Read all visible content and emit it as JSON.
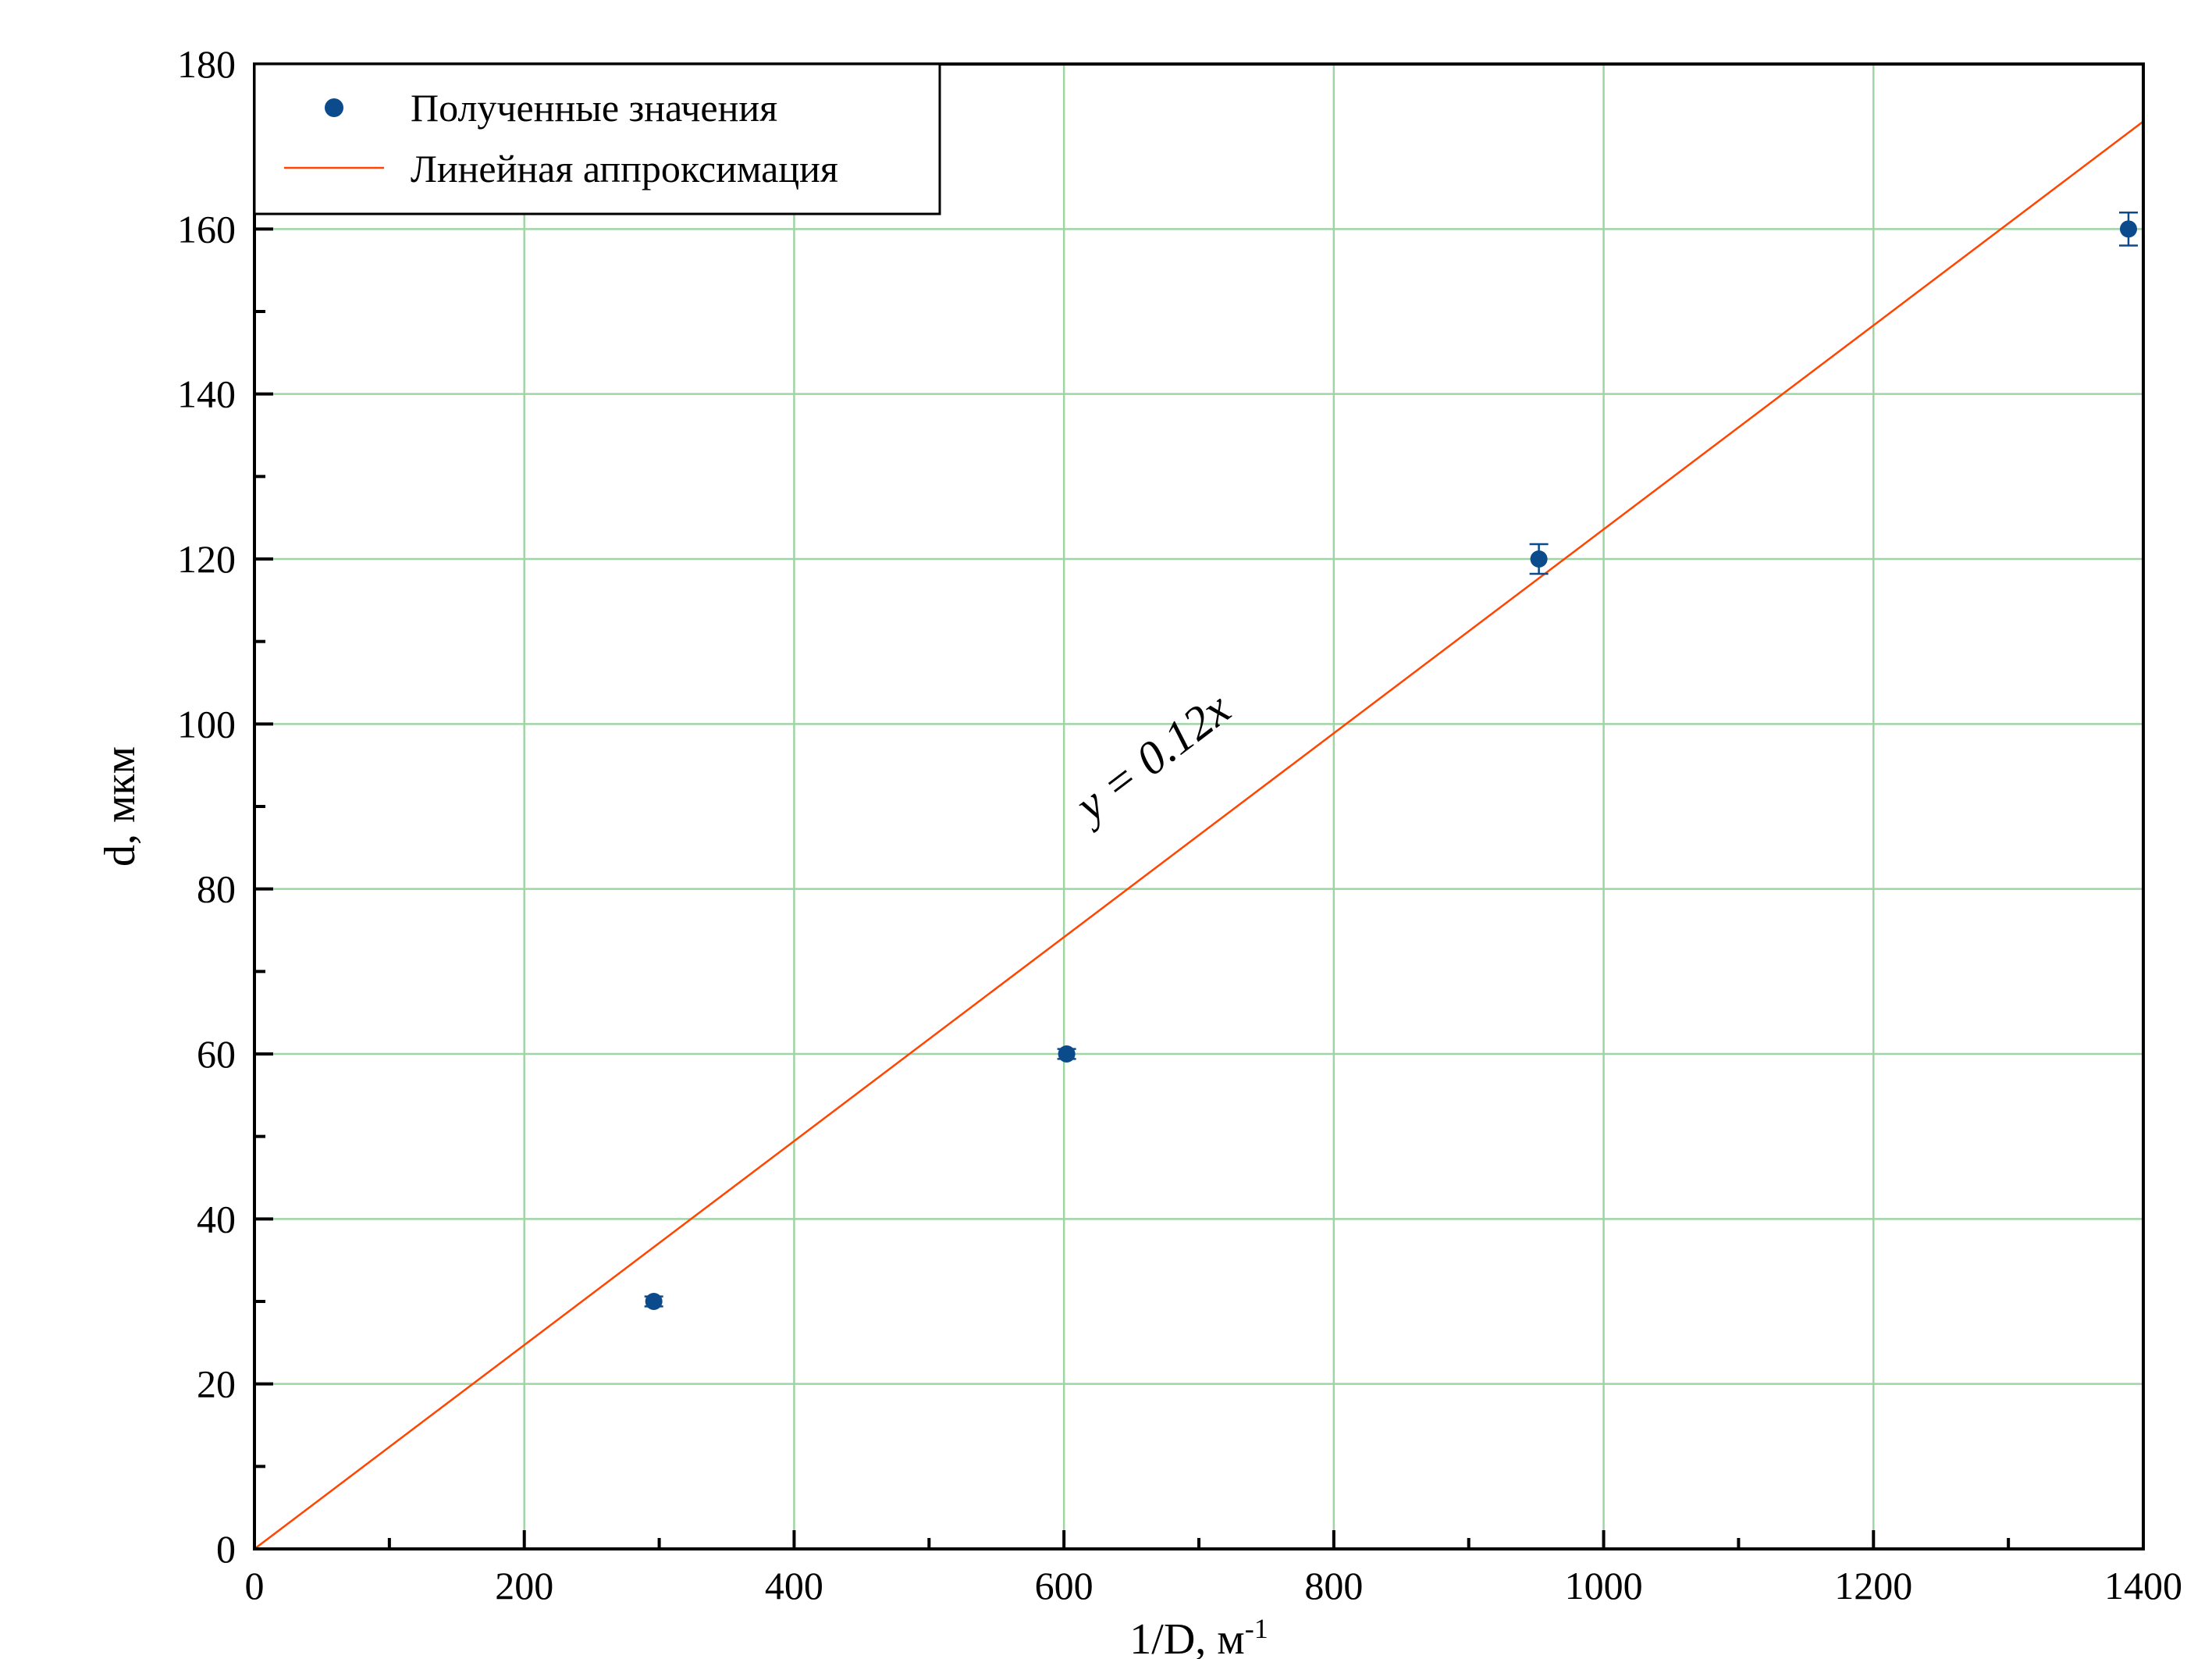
{
  "chart_data": {
    "type": "scatter",
    "xlabel": "1/D, м",
    "xlabel_sup": "-1",
    "ylabel": "d, мкм",
    "xlim": [
      0,
      1400
    ],
    "ylim": [
      0,
      180
    ],
    "x_major_ticks": [
      0,
      200,
      400,
      600,
      800,
      1000,
      1200,
      1400
    ],
    "x_minor_ticks": [
      100,
      300,
      500,
      700,
      900,
      1100,
      1300
    ],
    "y_major_ticks": [
      0,
      20,
      40,
      60,
      80,
      100,
      120,
      140,
      160,
      180
    ],
    "y_minor_ticks": [
      10,
      30,
      50,
      70,
      90,
      110,
      130,
      150,
      170
    ],
    "grid": true,
    "legend_position": "top-left",
    "series": [
      {
        "name": "Полученные значения",
        "kind": "points",
        "color": "#0b4a8b",
        "points": [
          {
            "x": 296,
            "y": 30,
            "err": 0.6
          },
          {
            "x": 602,
            "y": 60,
            "err": 0.6
          },
          {
            "x": 952,
            "y": 120,
            "err": 1.8
          },
          {
            "x": 1389,
            "y": 160,
            "err": 2.0
          }
        ]
      },
      {
        "name": "Линейная аппроксимация",
        "kind": "line",
        "color": "#ff4500",
        "slope": 0.1236,
        "intercept": 0
      }
    ],
    "annotation": "y = 0.12x",
    "annotation_anchor": {
      "x": 620,
      "y": 88
    },
    "colors": {
      "grid": "#9fd4a4",
      "axis": "#000000"
    }
  }
}
